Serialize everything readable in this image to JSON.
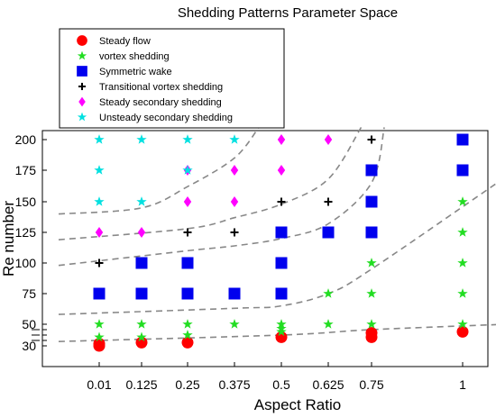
{
  "chart_data": {
    "type": "scatter",
    "title": "Shedding Patterns Parameter Space",
    "xlabel": "Aspect Ratio",
    "ylabel": "Re number",
    "x_tick_labels": [
      "0.01",
      "0.125",
      "0.25",
      "0.375",
      "0.5",
      "0.625",
      "0.75",
      "1"
    ],
    "y_ticks": [
      30,
      35,
      40,
      45,
      50,
      75,
      100,
      125,
      150,
      175,
      200
    ],
    "y_tick_labels": [
      "30",
      "",
      "",
      "",
      "50",
      "75",
      "100",
      "125",
      "150",
      "175",
      "200"
    ],
    "ylim": [
      10,
      210
    ],
    "grid": false,
    "legend_position": "top-left",
    "series": [
      {
        "name": "Steady flow",
        "marker": "circle",
        "color": "#ff0000",
        "points": [
          [
            "0.01",
            30
          ],
          [
            "0.01",
            32
          ],
          [
            "0.125",
            33
          ],
          [
            "0.25",
            33
          ],
          [
            "0.5",
            38
          ],
          [
            "0.75",
            38
          ],
          [
            "0.75",
            42
          ],
          [
            "1",
            43
          ]
        ]
      },
      {
        "name": "vortex shedding",
        "marker": "star",
        "color": "#22dd22",
        "points": [
          [
            "0.01",
            38
          ],
          [
            "0.01",
            50
          ],
          [
            "0.125",
            38
          ],
          [
            "0.125",
            50
          ],
          [
            "0.25",
            40
          ],
          [
            "0.25",
            50
          ],
          [
            "0.375",
            50
          ],
          [
            "0.5",
            43
          ],
          [
            "0.5",
            46
          ],
          [
            "0.5",
            50
          ],
          [
            "0.625",
            50
          ],
          [
            "0.625",
            75
          ],
          [
            "0.75",
            50
          ],
          [
            "0.75",
            75
          ],
          [
            "0.75",
            100
          ],
          [
            "1",
            50
          ],
          [
            "1",
            75
          ],
          [
            "1",
            100
          ],
          [
            "1",
            125
          ],
          [
            "1",
            150
          ]
        ]
      },
      {
        "name": "Symmetric wake",
        "marker": "square",
        "color": "#0000ee",
        "points": [
          [
            "0.01",
            75
          ],
          [
            "0.125",
            75
          ],
          [
            "0.125",
            100
          ],
          [
            "0.25",
            75
          ],
          [
            "0.25",
            100
          ],
          [
            "0.375",
            75
          ],
          [
            "0.5",
            75
          ],
          [
            "0.5",
            100
          ],
          [
            "0.5",
            125
          ],
          [
            "0.625",
            125
          ],
          [
            "0.75",
            125
          ],
          [
            "0.75",
            150
          ],
          [
            "0.75",
            175
          ],
          [
            "1",
            175
          ],
          [
            "1",
            200
          ]
        ]
      },
      {
        "name": "Transitional vortex shedding",
        "marker": "plus",
        "color": "#000000",
        "points": [
          [
            "0.01",
            100
          ],
          [
            "0.25",
            125
          ],
          [
            "0.375",
            125
          ],
          [
            "0.5",
            150
          ],
          [
            "0.625",
            150
          ],
          [
            "0.75",
            200
          ]
        ]
      },
      {
        "name": "Steady secondary shedding",
        "marker": "diamond",
        "color": "#ff00ff",
        "points": [
          [
            "0.01",
            125
          ],
          [
            "0.125",
            125
          ],
          [
            "0.25",
            150
          ],
          [
            "0.25",
            175
          ],
          [
            "0.375",
            150
          ],
          [
            "0.375",
            175
          ],
          [
            "0.5",
            175
          ],
          [
            "0.5",
            200
          ],
          [
            "0.625",
            200
          ]
        ]
      },
      {
        "name": "Unsteady secondary shedding",
        "marker": "star",
        "color": "#00e0e0",
        "points": [
          [
            "0.01",
            150
          ],
          [
            "0.01",
            175
          ],
          [
            "0.01",
            200
          ],
          [
            "0.125",
            150
          ],
          [
            "0.125",
            200
          ],
          [
            "0.25",
            175
          ],
          [
            "0.25",
            200
          ],
          [
            "0.375",
            200
          ]
        ]
      }
    ],
    "boundaries": [
      {
        "points": [
          [
            -0.1,
            34
          ],
          [
            0.5,
            40
          ],
          [
            0.75,
            45
          ],
          [
            1.12,
            50
          ]
        ]
      },
      {
        "points": [
          [
            -0.1,
            58
          ],
          [
            0.375,
            63
          ],
          [
            0.5,
            65
          ],
          [
            0.625,
            75
          ],
          [
            0.75,
            95
          ],
          [
            1.12,
            170
          ]
        ]
      },
      {
        "points": [
          [
            -0.1,
            98
          ],
          [
            0.25,
            110
          ],
          [
            0.375,
            114
          ],
          [
            0.5,
            120
          ],
          [
            0.625,
            132
          ],
          [
            0.75,
            165
          ],
          [
            0.785,
            210
          ]
        ]
      },
      {
        "points": [
          [
            -0.1,
            119
          ],
          [
            0.25,
            128
          ],
          [
            0.375,
            137
          ],
          [
            0.5,
            148
          ],
          [
            0.625,
            168
          ],
          [
            0.72,
            210
          ]
        ]
      },
      {
        "points": [
          [
            -0.1,
            140
          ],
          [
            0.125,
            145
          ],
          [
            0.25,
            162
          ],
          [
            0.375,
            185
          ],
          [
            0.44,
            210
          ]
        ]
      }
    ]
  }
}
